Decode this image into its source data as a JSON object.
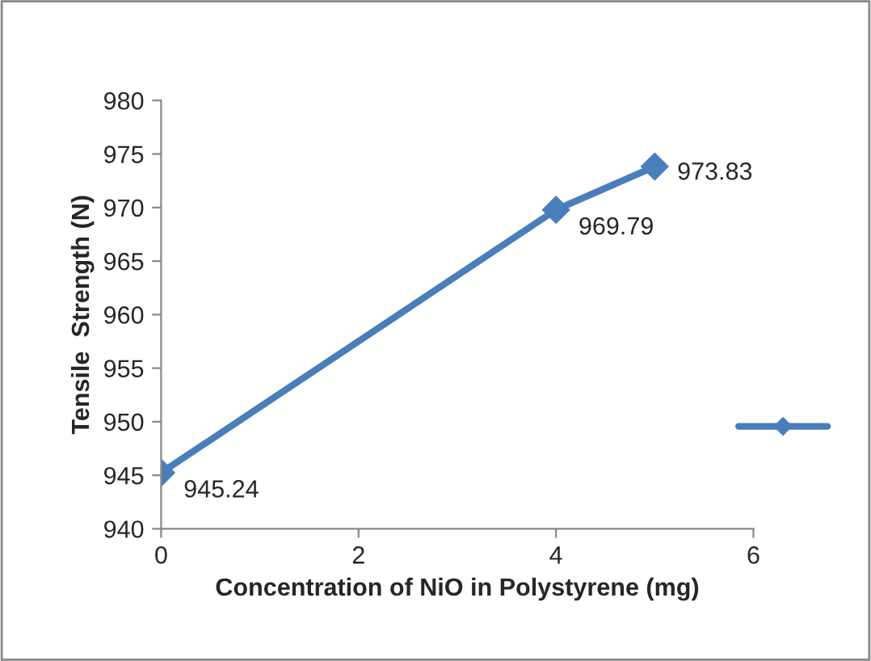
{
  "chart_data": {
    "type": "line",
    "xlabel": "Concentration of NiO in Polystyrene (mg)",
    "ylabel": "Tensile  Strength (N)",
    "x": [
      0,
      4,
      5
    ],
    "series": [
      {
        "color": "#4a7ebb",
        "values": [
          945.24,
          969.79,
          973.83
        ]
      }
    ],
    "xlim": [
      0,
      6
    ],
    "xticks": [
      0,
      2,
      4,
      6
    ],
    "ylim": [
      940,
      980
    ],
    "yticks": [
      940,
      945,
      950,
      955,
      960,
      965,
      970,
      975,
      980
    ],
    "data_labels": true,
    "marker": "diamond",
    "line_style": "solid",
    "grid": false
  }
}
